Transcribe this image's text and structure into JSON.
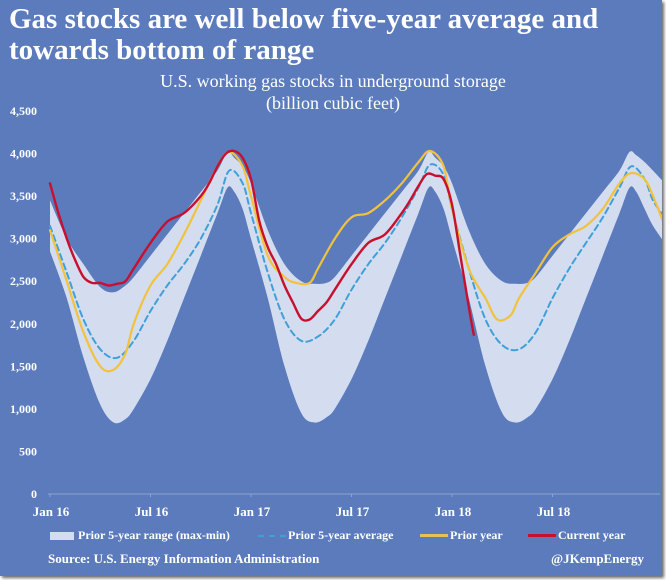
{
  "title": "Gas stocks are well below five-year average and towards bottom of  range",
  "subtitle_line1": "U.S. working gas stocks in underground storage",
  "subtitle_line2": "(billion cubic feet)",
  "source": "Source: U.S. Energy Information Administration",
  "handle": "@JKempEnergy",
  "colors": {
    "background": "#5b7bbd",
    "range_fill": "#d3ddef",
    "average": "#3fa0d9",
    "prior_year": "#f2c23c",
    "current_year": "#c8102e"
  },
  "chart_data": {
    "type": "line",
    "title": "U.S. working gas stocks in underground storage (billion cubic feet)",
    "xlabel": "",
    "ylabel": "",
    "x_unit": "months since Jan 2016",
    "xlim": [
      0,
      36.7
    ],
    "ylim": [
      0,
      4500
    ],
    "yticks": [
      0,
      500,
      1000,
      1500,
      2000,
      2500,
      3000,
      3500,
      4000,
      4500
    ],
    "ytick_labels": [
      "0",
      "500",
      "1,000",
      "1,500",
      "2,000",
      "2,500",
      "3,000",
      "3,500",
      "4,000",
      "4,500"
    ],
    "xticks": [
      0,
      6,
      12,
      18,
      24,
      30
    ],
    "xtick_labels": [
      "Jan 16",
      "Jul 16",
      "Jan 17",
      "Jul 17",
      "Jan 18",
      "Jul 18"
    ],
    "grid": false,
    "legend_position": "bottom",
    "series": [
      {
        "name": "Prior 5-year range (max-min)",
        "kind": "band",
        "x": [
          0,
          1,
          2,
          3,
          3.8,
          4.5,
          5,
          6,
          7,
          8,
          9,
          10,
          10.6,
          11,
          11.5,
          12,
          13,
          14,
          15,
          15.8,
          16.5,
          17,
          18,
          19,
          20,
          21,
          22,
          22.6,
          23,
          23.5,
          24,
          25,
          26,
          27,
          27.8,
          28.5,
          29,
          30,
          31,
          32,
          33,
          34,
          34.6,
          35,
          35.5,
          36,
          36.7
        ],
        "max": [
          3450,
          3000,
          2700,
          2430,
          2370,
          2450,
          2550,
          2800,
          3050,
          3300,
          3550,
          3800,
          4020,
          3950,
          3850,
          3650,
          3100,
          2700,
          2500,
          2470,
          2480,
          2550,
          2800,
          3050,
          3300,
          3550,
          3800,
          4020,
          3950,
          3850,
          3650,
          3100,
          2700,
          2500,
          2470,
          2480,
          2550,
          2800,
          3050,
          3300,
          3550,
          3800,
          4020,
          3980,
          3900,
          3800,
          3650
        ],
        "min": [
          2850,
          2300,
          1600,
          1050,
          840,
          880,
          1000,
          1350,
          1800,
          2300,
          2800,
          3300,
          3600,
          3550,
          3350,
          3000,
          2300,
          1500,
          950,
          840,
          900,
          1000,
          1350,
          1800,
          2300,
          2800,
          3300,
          3600,
          3550,
          3350,
          3000,
          2300,
          1500,
          950,
          840,
          900,
          1000,
          1350,
          1800,
          2300,
          2800,
          3300,
          3600,
          3550,
          3350,
          3150,
          2950
        ]
      },
      {
        "name": "Prior 5-year average",
        "kind": "line",
        "style": "dashed",
        "x": [
          0,
          1,
          2,
          3,
          4,
          5,
          6,
          7,
          8,
          9,
          10,
          10.7,
          11.5,
          12,
          13,
          14,
          15,
          16,
          17,
          18,
          19,
          20,
          21,
          22,
          22.7,
          23.5,
          24,
          25,
          26,
          27,
          28,
          29,
          30,
          31,
          32,
          33,
          34,
          34.7,
          35.5,
          36,
          36.7
        ],
        "values": [
          3150,
          2600,
          2050,
          1700,
          1600,
          1800,
          2150,
          2450,
          2700,
          3000,
          3400,
          3800,
          3650,
          3300,
          2600,
          2050,
          1800,
          1850,
          2050,
          2400,
          2700,
          2950,
          3250,
          3600,
          3870,
          3750,
          3350,
          2650,
          2050,
          1750,
          1700,
          1900,
          2300,
          2650,
          2950,
          3250,
          3600,
          3850,
          3700,
          3450,
          3250
        ]
      },
      {
        "name": "Prior year",
        "kind": "line",
        "style": "solid",
        "x": [
          0,
          1,
          2,
          3,
          3.8,
          4.5,
          5,
          6,
          7,
          8,
          9,
          10,
          10.7,
          11.5,
          12,
          13,
          14,
          14.7,
          15.5,
          16,
          17,
          18,
          19,
          20,
          21,
          22,
          22.7,
          23.5,
          24,
          25,
          26,
          26.7,
          27.5,
          28,
          29,
          30,
          31,
          32,
          33,
          34,
          34.7,
          35.5,
          36,
          36.7
        ],
        "values": [
          3100,
          2500,
          1900,
          1500,
          1460,
          1650,
          2000,
          2450,
          2700,
          3050,
          3450,
          3850,
          4020,
          3850,
          3500,
          2800,
          2550,
          2480,
          2480,
          2650,
          3000,
          3250,
          3300,
          3450,
          3650,
          3900,
          4030,
          3850,
          3350,
          2650,
          2300,
          2050,
          2100,
          2300,
          2600,
          2900,
          3050,
          3150,
          3350,
          3650,
          3770,
          3700,
          3500,
          3150
        ]
      },
      {
        "name": "Current year",
        "kind": "line",
        "style": "solid",
        "x": [
          0,
          0.5,
          1,
          1.5,
          2,
          2.5,
          3,
          3.5,
          4,
          4.5,
          5,
          6,
          7,
          8,
          9,
          9.5,
          10,
          10.5,
          11,
          11.5,
          12,
          12.5,
          13,
          13.5,
          14,
          14.5,
          15,
          15.5,
          16,
          16.5,
          17,
          18,
          19,
          20,
          21,
          21.5,
          22,
          22.5,
          23,
          23.5,
          24,
          24.5,
          25,
          25.3
        ],
        "values": [
          3650,
          3300,
          3000,
          2750,
          2550,
          2480,
          2480,
          2450,
          2470,
          2500,
          2650,
          2950,
          3200,
          3300,
          3500,
          3650,
          3850,
          4000,
          4030,
          3950,
          3700,
          3200,
          2900,
          2700,
          2450,
          2250,
          2060,
          2050,
          2150,
          2250,
          2400,
          2700,
          2950,
          3050,
          3300,
          3450,
          3620,
          3760,
          3740,
          3700,
          3400,
          2800,
          2200,
          1870
        ]
      }
    ]
  },
  "legend": [
    {
      "label": "Prior 5-year range (max-min)",
      "icon": "range-swatch"
    },
    {
      "label": "Prior 5-year average",
      "icon": "dashed-line-swatch"
    },
    {
      "label": "Prior year",
      "icon": "yellow-line-swatch"
    },
    {
      "label": "Current year",
      "icon": "red-line-swatch"
    }
  ]
}
